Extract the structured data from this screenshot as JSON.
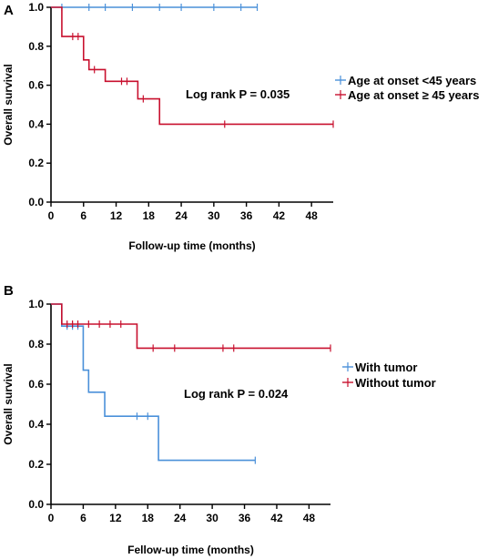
{
  "chart_data": [
    {
      "type": "line",
      "panel_label": "A",
      "title": "",
      "xlabel": "Follow-up time (months)",
      "ylabel": "Overall survival",
      "xlim": [
        0,
        52
      ],
      "ylim": [
        0,
        1.0
      ],
      "xticks": [
        0,
        6,
        12,
        18,
        24,
        30,
        36,
        42,
        48
      ],
      "yticks": [
        0.0,
        0.2,
        0.4,
        0.6,
        0.8,
        1.0
      ],
      "xtick_labels": [
        "0",
        "6",
        "12",
        "18",
        "24",
        "30",
        "36",
        "42",
        "48"
      ],
      "ytick_labels": [
        "0.0",
        "0.2",
        "0.4",
        "0.6",
        "0.8",
        "1.0"
      ],
      "annotation": "Log rank P = 0.035",
      "legend_position": "right",
      "grid": false,
      "series": [
        {
          "name": "Age at onset <45 years",
          "color": "#4a90d9",
          "steps": [
            [
              0,
              1.0
            ],
            [
              38,
              1.0
            ]
          ],
          "censor": [
            [
              2,
              1.0
            ],
            [
              7,
              1.0
            ],
            [
              10,
              1.0
            ],
            [
              15,
              1.0
            ],
            [
              20,
              1.0
            ],
            [
              24,
              1.0
            ],
            [
              30,
              1.0
            ],
            [
              35,
              1.0
            ],
            [
              38,
              1.0
            ]
          ]
        },
        {
          "name": "Age at onset ≥ 45 years",
          "color": "#c8102e",
          "steps": [
            [
              0,
              1.0
            ],
            [
              2,
              0.85
            ],
            [
              6,
              0.73
            ],
            [
              7,
              0.68
            ],
            [
              10,
              0.62
            ],
            [
              15,
              0.62
            ],
            [
              16,
              0.53
            ],
            [
              20,
              0.4
            ],
            [
              52,
              0.4
            ]
          ],
          "censor": [
            [
              4,
              0.85
            ],
            [
              5,
              0.85
            ],
            [
              8,
              0.68
            ],
            [
              13,
              0.62
            ],
            [
              14,
              0.62
            ],
            [
              17,
              0.53
            ],
            [
              32,
              0.4
            ],
            [
              52,
              0.4
            ]
          ]
        }
      ]
    },
    {
      "type": "line",
      "panel_label": "B",
      "title": "",
      "xlabel": "Fellow-up time (months)",
      "ylabel": "Overall survival",
      "xlim": [
        0,
        52
      ],
      "ylim": [
        0,
        1.0
      ],
      "xticks": [
        0,
        6,
        12,
        18,
        24,
        30,
        36,
        42,
        48
      ],
      "yticks": [
        0.0,
        0.2,
        0.4,
        0.6,
        0.8,
        1.0
      ],
      "xtick_labels": [
        "0",
        "6",
        "12",
        "18",
        "24",
        "30",
        "36",
        "42",
        "48"
      ],
      "ytick_labels": [
        "0.0",
        "0.2",
        "0.4",
        "0.6",
        "0.8",
        "1.0"
      ],
      "annotation": "Log rank P = 0.024",
      "legend_position": "right",
      "grid": false,
      "series": [
        {
          "name": "With tumor",
          "color": "#4a90d9",
          "steps": [
            [
              0,
              1.0
            ],
            [
              2,
              0.89
            ],
            [
              6,
              0.67
            ],
            [
              7,
              0.56
            ],
            [
              10,
              0.44
            ],
            [
              20,
              0.22
            ],
            [
              38,
              0.22
            ]
          ],
          "censor": [
            [
              3,
              0.89
            ],
            [
              4,
              0.89
            ],
            [
              5,
              0.89
            ],
            [
              16,
              0.44
            ],
            [
              18,
              0.44
            ],
            [
              38,
              0.22
            ]
          ]
        },
        {
          "name": "Without tumor",
          "color": "#c8102e",
          "steps": [
            [
              0,
              1.0
            ],
            [
              2,
              0.9
            ],
            [
              16,
              0.78
            ],
            [
              52,
              0.78
            ]
          ],
          "censor": [
            [
              3,
              0.9
            ],
            [
              4,
              0.9
            ],
            [
              5,
              0.9
            ],
            [
              7,
              0.9
            ],
            [
              9,
              0.9
            ],
            [
              11,
              0.9
            ],
            [
              13,
              0.9
            ],
            [
              19,
              0.78
            ],
            [
              23,
              0.78
            ],
            [
              32,
              0.78
            ],
            [
              34,
              0.78
            ],
            [
              52,
              0.78
            ]
          ]
        }
      ]
    }
  ]
}
